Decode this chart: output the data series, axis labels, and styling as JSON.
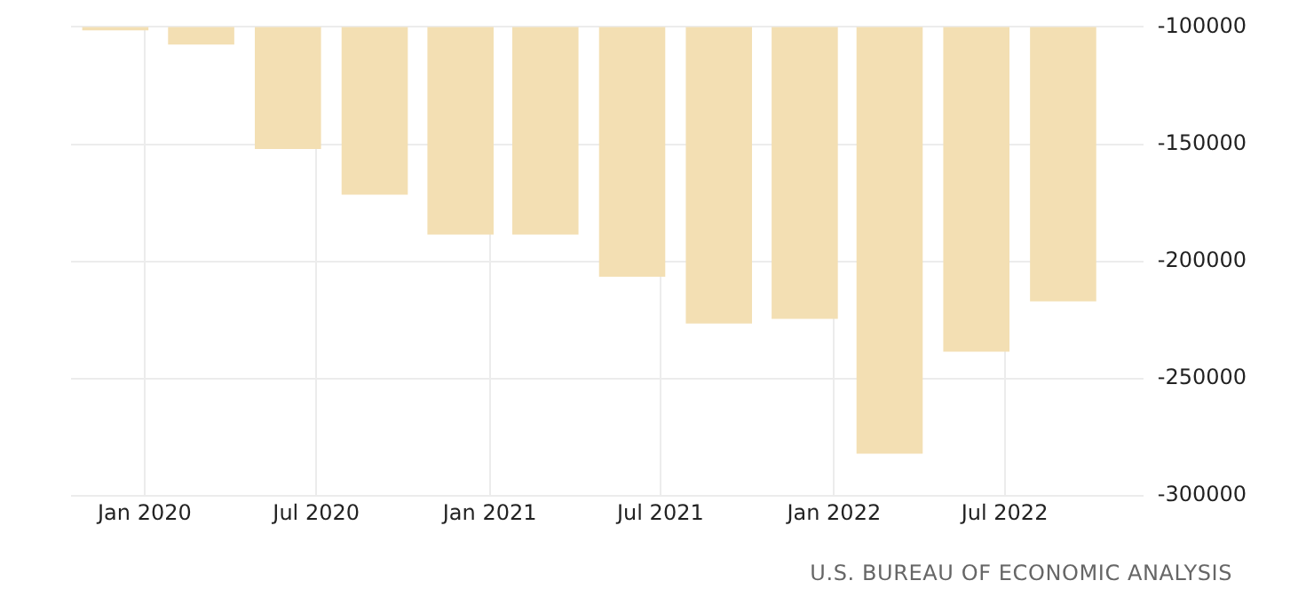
{
  "chart_data": {
    "type": "bar",
    "x": [
      "2019-12",
      "2020-03",
      "2020-06",
      "2020-09",
      "2020-12",
      "2021-03",
      "2021-06",
      "2021-09",
      "2021-12",
      "2022-03",
      "2022-06",
      "2022-09"
    ],
    "values": [
      -101500,
      -107500,
      -152000,
      -171500,
      -188500,
      -188500,
      -206500,
      -226500,
      -224500,
      -282000,
      -238500,
      -217000
    ],
    "color": "#f3dfb3",
    "xlim": [
      "2019-10-15",
      "2022-11-25"
    ],
    "xticks": [
      {
        "value": "2020-01",
        "label": "Jan 2020"
      },
      {
        "value": "2020-07",
        "label": "Jul 2020"
      },
      {
        "value": "2021-01",
        "label": "Jan 2021"
      },
      {
        "value": "2021-07",
        "label": "Jul 2021"
      },
      {
        "value": "2022-01",
        "label": "Jan 2022"
      },
      {
        "value": "2022-07",
        "label": "Jul 2022"
      }
    ],
    "ylim": [
      -300000,
      -100000
    ],
    "yticks": [
      -300000,
      -250000,
      -200000,
      -150000,
      -100000
    ],
    "grid": true,
    "legend": false,
    "annotations": [
      "U.S. BUREAU OF ECONOMIC ANALYSIS"
    ]
  }
}
